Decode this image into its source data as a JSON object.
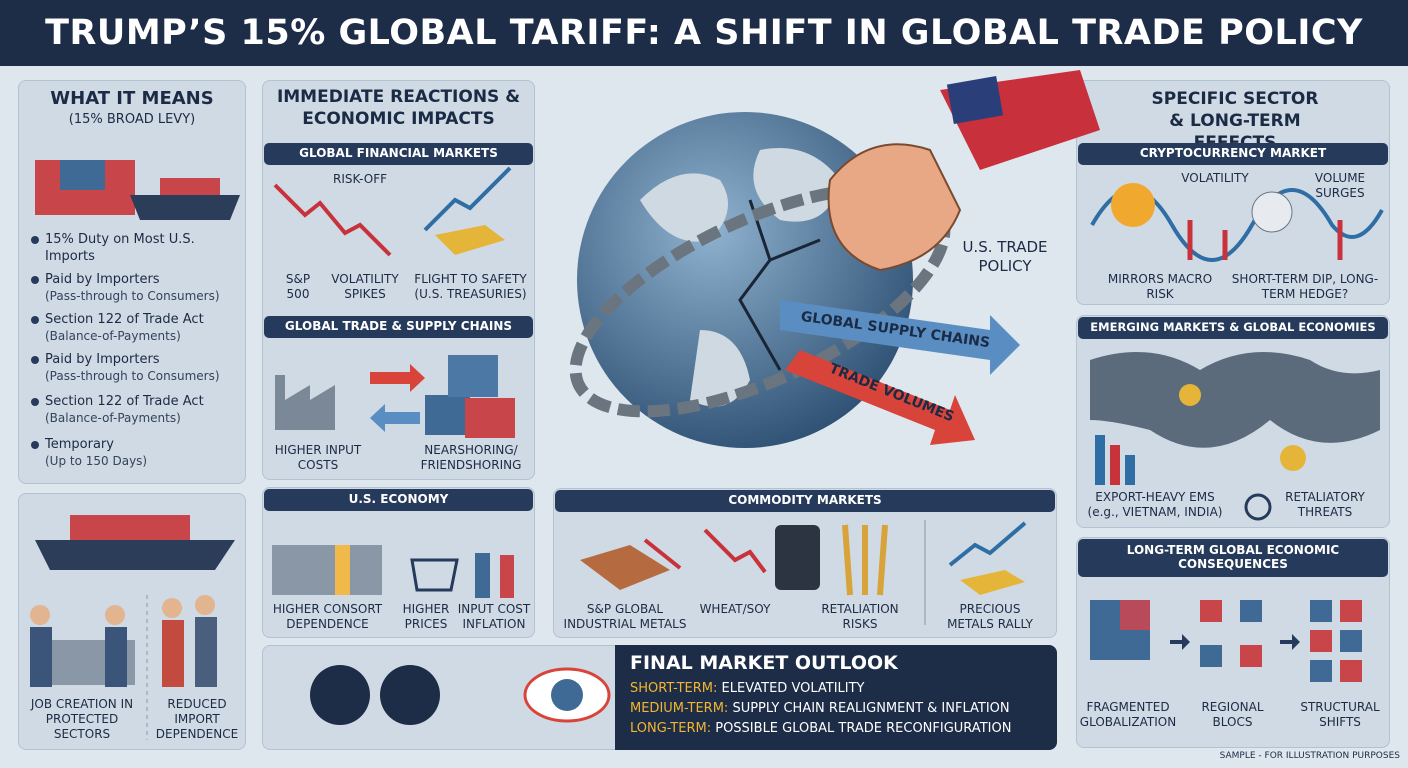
{
  "header": {
    "title": "TRUMP’S 15% GLOBAL TARIFF: A SHIFT IN GLOBAL TRADE POLICY"
  },
  "what_it_means": {
    "heading": "WHAT IT MEANS",
    "subheading": "(15% BROAD LEVY)",
    "items": [
      {
        "main": "15% Duty on Most U.S. Imports"
      },
      {
        "main": "Paid by Importers",
        "sub": "(Pass-through to Consumers)"
      },
      {
        "main": "Section 122 of Trade Act",
        "sub": "(Balance-of-Payments)"
      },
      {
        "main": "Paid by Importers",
        "sub": "(Pass-through to Consumers)"
      },
      {
        "main": "Section 122 of Trade Act",
        "sub": "(Balance-of-Payments)"
      },
      {
        "main": "Temporary",
        "sub": "(Up to 150 Days)"
      }
    ]
  },
  "domestic": {
    "labels": [
      "JOB CREATION IN PROTECTED SECTORS",
      "REDUCED IMPORT DEPENDENCE"
    ]
  },
  "immediate": {
    "heading": "IMMEDIATE REACTIONS & ECONOMIC IMPACTS",
    "financial": {
      "title": "GLOBAL FINANCIAL MARKETS",
      "labels": [
        "RISK-OFF",
        "S&P 500",
        "VOLATILITY SPIKES",
        "FLIGHT TO SAFETY (U.S. TREASURIES)"
      ]
    },
    "trade": {
      "title": "GLOBAL TRADE & SUPPLY CHAINS",
      "labels": [
        "HIGHER INPUT COSTS",
        "NEARSHORING/ FRIENDSHORING"
      ]
    },
    "us_economy": {
      "title": "U.S. ECONOMY",
      "labels": [
        "HIGHER CONSORT DEPENDENCE",
        "HIGHER PRICES",
        "INPUT COST INFLATION"
      ]
    }
  },
  "center": {
    "labels": [
      "U.S. TRADE POLICY",
      "GLOBAL SUPPLY CHAINS",
      "TRADE VOLUMES"
    ]
  },
  "commodity": {
    "title": "COMMODITY MARKETS",
    "labels": [
      "S&P GLOBAL INDUSTRIAL METALS",
      "WHEAT/SOY",
      "RETALIATION RISKS",
      "PRECIOUS METALS RALLY"
    ]
  },
  "outlook": {
    "title": "FINAL MARKET OUTLOOK",
    "rows": [
      {
        "label": "SHORT-TERM:",
        "text": "ELEVATED VOLATILITY"
      },
      {
        "label": "MEDIUM-TERM:",
        "text": "SUPPLY CHAIN REALIGNMENT & INFLATION"
      },
      {
        "label": "LONG-TERM:",
        "text": "POSSIBLE GLOBAL TRADE RECONFIGURATION"
      }
    ]
  },
  "sector": {
    "heading": "SPECIFIC SECTOR & LONG-TERM EFFECTS",
    "crypto": {
      "title": "CRYPTOCURRENCY MARKET",
      "labels": [
        "VOLATILITY",
        "VOLUME SURGES",
        "MIRRORS MACRO RISK",
        "SHORT-TERM DIP, LONG-TERM HEDGE?"
      ]
    },
    "emerging": {
      "title": "EMERGING MARKETS & GLOBAL ECONOMIES",
      "labels": [
        "EXPORT-HEAVY EMS (e.g., VIETNAM, INDIA)",
        "RETALIATORY THREATS"
      ]
    },
    "long_term": {
      "title": "LONG-TERM GLOBAL ECONOMIC CONSEQUENCES",
      "labels": [
        "FRAGMENTED GLOBALIZATION",
        "REGIONAL BLOCS",
        "STRUCTURAL SHIFTS"
      ]
    }
  },
  "footer": {
    "note": "SAMPLE - FOR ILLUSTRATION PURPOSES"
  }
}
